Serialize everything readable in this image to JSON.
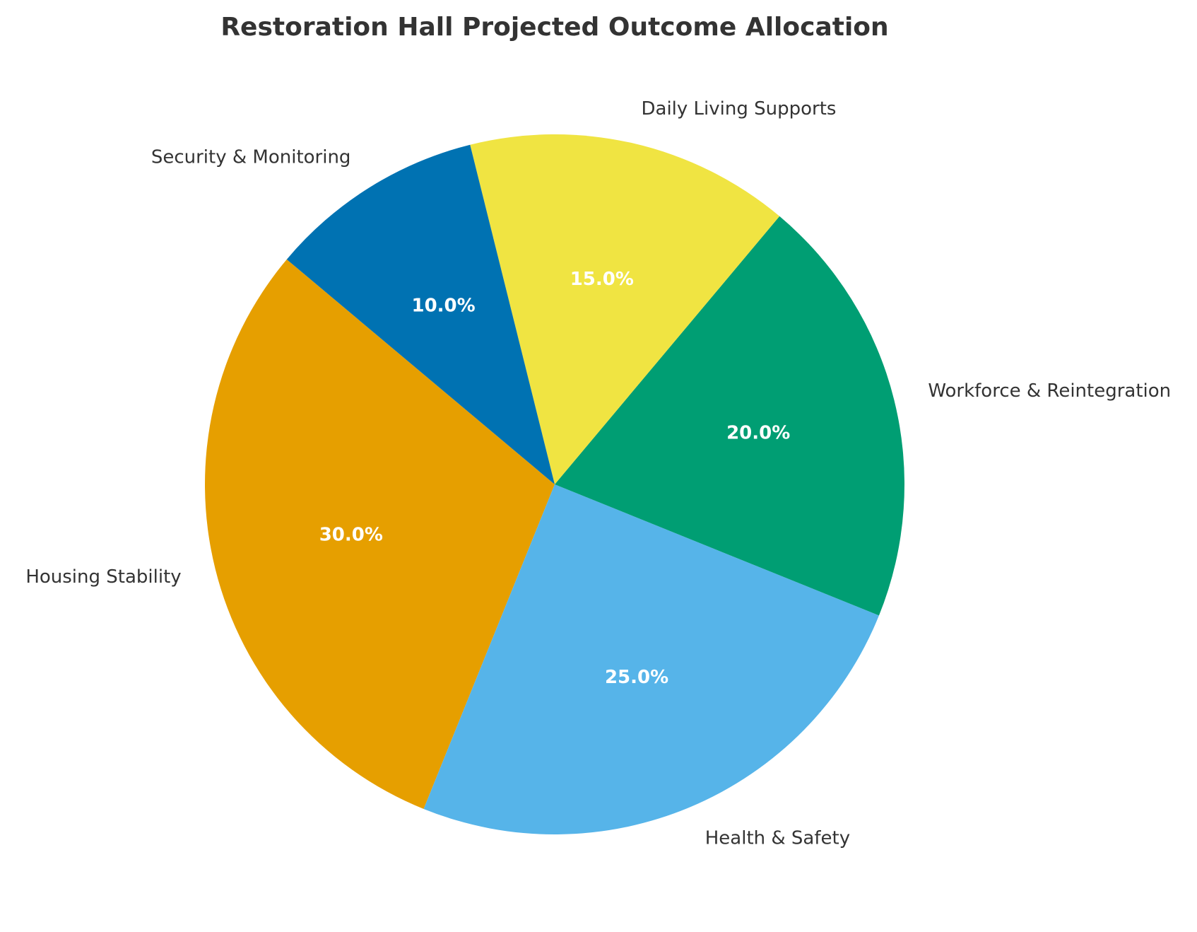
{
  "chart_data": {
    "type": "pie",
    "title": "Restoration Hall Projected Outcome Allocation",
    "categories": [
      "Housing Stability",
      "Health & Safety",
      "Workforce & Reintegration",
      "Daily Living Supports",
      "Security & Monitoring"
    ],
    "values": [
      30.0,
      25.0,
      20.0,
      15.0,
      10.0
    ],
    "value_labels": [
      "30.0%",
      "25.0%",
      "20.0%",
      "15.0%",
      "10.0%"
    ],
    "colors": [
      "#E69F00",
      "#56B4E9",
      "#009E73",
      "#F0E442",
      "#0072B2"
    ],
    "start_angle_deg": 140,
    "direction": "counterclockwise",
    "legend": "none"
  }
}
